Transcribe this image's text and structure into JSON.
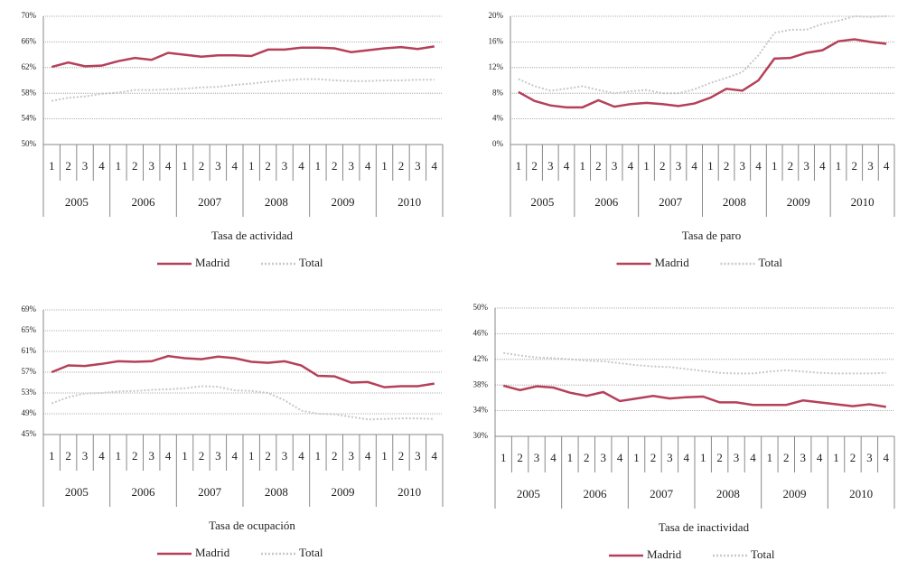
{
  "chart_data": [
    {
      "type": "line",
      "title": "Tasa de actividad",
      "categories": [
        "1",
        "2",
        "3",
        "4",
        "1",
        "2",
        "3",
        "4",
        "1",
        "2",
        "3",
        "4",
        "1",
        "2",
        "3",
        "4",
        "1",
        "2",
        "3",
        "4",
        "1",
        "2",
        "3",
        "4"
      ],
      "groups": [
        "2005",
        "2006",
        "2007",
        "2008",
        "2009",
        "2010"
      ],
      "series": [
        {
          "name": "Madrid",
          "color": "#b5405a",
          "line_style": "solid",
          "values": [
            62.1,
            62.8,
            62.2,
            62.3,
            63.0,
            63.5,
            63.2,
            64.3,
            64.0,
            63.7,
            63.9,
            63.9,
            63.8,
            64.8,
            64.8,
            65.1,
            65.1,
            65.0,
            64.4,
            64.7,
            65.0,
            65.2,
            64.9,
            65.3
          ]
        },
        {
          "name": "Total",
          "color": "#c8c8c8",
          "line_style": "dotted",
          "values": [
            56.8,
            57.3,
            57.5,
            57.9,
            58.1,
            58.5,
            58.5,
            58.6,
            58.7,
            58.9,
            59.0,
            59.3,
            59.5,
            59.8,
            60.0,
            60.2,
            60.2,
            60.0,
            59.9,
            59.9,
            60.0,
            60.0,
            60.1,
            60.1
          ]
        }
      ],
      "ylim": [
        50,
        70
      ],
      "yticks": [
        {
          "value": 50,
          "label": "50%"
        },
        {
          "value": 54,
          "label": "54%"
        },
        {
          "value": 58,
          "label": "58%"
        },
        {
          "value": 62,
          "label": "62%"
        },
        {
          "value": 66,
          "label": "66%"
        },
        {
          "value": 70,
          "label": "70%"
        }
      ],
      "grid": true
    },
    {
      "type": "line",
      "title": "Tasa de paro",
      "categories": [
        "1",
        "2",
        "3",
        "4",
        "1",
        "2",
        "3",
        "4",
        "1",
        "2",
        "3",
        "4",
        "1",
        "2",
        "3",
        "4",
        "1",
        "2",
        "3",
        "4",
        "1",
        "2",
        "3",
        "4"
      ],
      "groups": [
        "2005",
        "2006",
        "2007",
        "2008",
        "2009",
        "2010"
      ],
      "series": [
        {
          "name": "Madrid",
          "color": "#b5405a",
          "line_style": "solid",
          "values": [
            8.2,
            6.8,
            6.1,
            5.8,
            5.8,
            6.9,
            5.9,
            6.3,
            6.5,
            6.3,
            6.0,
            6.4,
            7.3,
            8.7,
            8.4,
            10.0,
            13.4,
            13.5,
            14.3,
            14.7,
            16.1,
            16.4,
            16.0,
            15.7
          ]
        },
        {
          "name": "Total",
          "color": "#c8c8c8",
          "line_style": "dotted",
          "values": [
            10.2,
            9.1,
            8.4,
            8.7,
            9.1,
            8.5,
            8.0,
            8.3,
            8.5,
            8.0,
            8.0,
            8.6,
            9.6,
            10.4,
            11.3,
            13.9,
            17.4,
            17.9,
            17.9,
            18.8,
            19.3,
            20.0,
            19.9,
            20.0
          ]
        }
      ],
      "ylim": [
        0,
        20
      ],
      "yticks": [
        {
          "value": 0,
          "label": "0%"
        },
        {
          "value": 4,
          "label": "4%"
        },
        {
          "value": 8,
          "label": "8%"
        },
        {
          "value": 12,
          "label": "12%"
        },
        {
          "value": 16,
          "label": "16%"
        },
        {
          "value": 20,
          "label": "20%"
        }
      ],
      "grid": true
    },
    {
      "type": "line",
      "title": "Tasa de ocupación",
      "categories": [
        "1",
        "2",
        "3",
        "4",
        "1",
        "2",
        "3",
        "4",
        "1",
        "2",
        "3",
        "4",
        "1",
        "2",
        "3",
        "4",
        "1",
        "2",
        "3",
        "4",
        "1",
        "2",
        "3",
        "4"
      ],
      "groups": [
        "2005",
        "2006",
        "2007",
        "2008",
        "2009",
        "2010"
      ],
      "series": [
        {
          "name": "Madrid",
          "color": "#b5405a",
          "line_style": "solid",
          "values": [
            57.0,
            58.3,
            58.2,
            58.6,
            59.1,
            59.0,
            59.1,
            60.1,
            59.7,
            59.5,
            60.0,
            59.7,
            59.0,
            58.8,
            59.1,
            58.3,
            56.3,
            56.2,
            55.0,
            55.1,
            54.1,
            54.3,
            54.3,
            54.8
          ]
        },
        {
          "name": "Total",
          "color": "#c8c8c8",
          "line_style": "dotted",
          "values": [
            51.0,
            52.2,
            52.9,
            53.0,
            53.3,
            53.4,
            53.6,
            53.7,
            53.9,
            54.3,
            54.2,
            53.5,
            53.4,
            53.0,
            51.6,
            49.6,
            49.0,
            48.9,
            48.4,
            47.9,
            48.0,
            48.1,
            48.1,
            48.0
          ]
        }
      ],
      "ylim": [
        45,
        69
      ],
      "yticks": [
        {
          "value": 45,
          "label": "45%"
        },
        {
          "value": 49,
          "label": "49%"
        },
        {
          "value": 53,
          "label": "53%"
        },
        {
          "value": 57,
          "label": "57%"
        },
        {
          "value": 61,
          "label": "61%"
        },
        {
          "value": 65,
          "label": "65%"
        },
        {
          "value": 69,
          "label": "69%"
        }
      ],
      "grid": true
    },
    {
      "type": "line",
      "title": "Tasa de inactividad",
      "categories": [
        "1",
        "2",
        "3",
        "4",
        "1",
        "2",
        "3",
        "4",
        "1",
        "2",
        "3",
        "4",
        "1",
        "2",
        "3",
        "4",
        "1",
        "2",
        "3",
        "4",
        "1",
        "2",
        "3",
        "4"
      ],
      "groups": [
        "2005",
        "2006",
        "2007",
        "2008",
        "2009",
        "2010"
      ],
      "series": [
        {
          "name": "Madrid",
          "color": "#b5405a",
          "line_style": "solid",
          "values": [
            37.9,
            37.2,
            37.8,
            37.6,
            36.8,
            36.3,
            36.9,
            35.5,
            35.9,
            36.3,
            35.9,
            36.1,
            36.2,
            35.3,
            35.3,
            34.9,
            34.9,
            34.9,
            35.6,
            35.3,
            35.0,
            34.7,
            35.0,
            34.6
          ]
        },
        {
          "name": "Total",
          "color": "#c8c8c8",
          "line_style": "dotted",
          "values": [
            43.0,
            42.6,
            42.3,
            42.2,
            42.0,
            41.8,
            41.7,
            41.4,
            41.1,
            40.9,
            40.8,
            40.5,
            40.2,
            39.9,
            39.8,
            39.8,
            40.1,
            40.3,
            40.1,
            39.9,
            39.8,
            39.8,
            39.8,
            39.9
          ]
        }
      ],
      "ylim": [
        30,
        50
      ],
      "yticks": [
        {
          "value": 30,
          "label": "30%"
        },
        {
          "value": 34,
          "label": "34%"
        },
        {
          "value": 38,
          "label": "38%"
        },
        {
          "value": 42,
          "label": "42%"
        },
        {
          "value": 46,
          "label": "46%"
        },
        {
          "value": 50,
          "label": "50%"
        }
      ],
      "grid": true
    }
  ]
}
